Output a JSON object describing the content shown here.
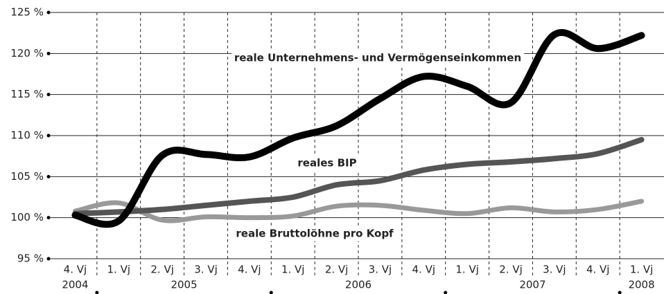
{
  "chart_data": {
    "type": "line",
    "categories": [
      "4. Vj",
      "1. Vj",
      "2. Vj",
      "3. Vj",
      "4. Vj",
      "1. Vj",
      "2. Vj",
      "3. Vj",
      "4. Vj",
      "1. Vj",
      "2. Vj",
      "3. Vj",
      "4. Vj",
      "1. Vj"
    ],
    "years": [
      "2004",
      "2005",
      "2006",
      "2007",
      "2008"
    ],
    "year_sizes": [
      1,
      4,
      4,
      4,
      1
    ],
    "series": [
      {
        "name": "reale Unternehmens- und Vermögenseinkommen",
        "color": "#000000",
        "values": [
          100.3,
          99.6,
          107.6,
          107.7,
          107.4,
          109.7,
          111.2,
          114.5,
          117.2,
          116.0,
          114.0,
          122.3,
          120.6,
          122.2
        ]
      },
      {
        "name": "reales BIP",
        "color": "#555555",
        "values": [
          100.5,
          100.7,
          101.0,
          101.5,
          102.0,
          102.5,
          104.0,
          104.5,
          105.8,
          106.5,
          106.8,
          107.2,
          107.8,
          109.5
        ]
      },
      {
        "name": "reale Bruttolöhne pro Kopf",
        "color": "#999999",
        "values": [
          100.8,
          101.8,
          99.7,
          100.1,
          100.0,
          100.2,
          101.4,
          101.5,
          100.9,
          100.5,
          101.2,
          100.7,
          101.0,
          102.0
        ]
      }
    ],
    "ylim": [
      95,
      125
    ],
    "yticks": [
      {
        "value": 95,
        "label": "95 %"
      },
      {
        "value": 100,
        "label": "100 %"
      },
      {
        "value": 105,
        "label": "105 %"
      },
      {
        "value": 110,
        "label": "110 %"
      },
      {
        "value": 115,
        "label": "115 %"
      },
      {
        "value": 120,
        "label": "120 %"
      },
      {
        "value": 125,
        "label": "125 %"
      }
    ],
    "grid": true
  }
}
